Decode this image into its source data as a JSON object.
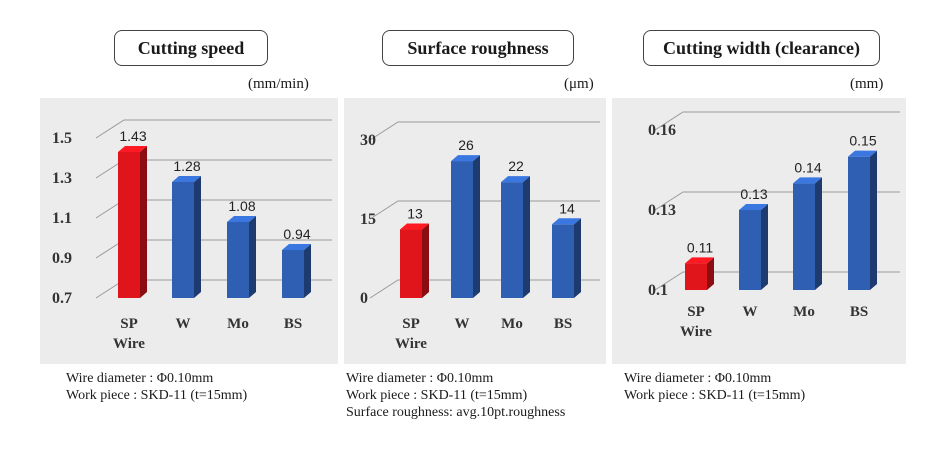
{
  "chart_data": [
    {
      "type": "bar",
      "title": "Cutting speed",
      "unit": "(mm/min)",
      "categories": [
        "SP\nWire",
        "W",
        "Mo",
        "BS"
      ],
      "values": [
        1.43,
        1.28,
        1.08,
        0.94
      ],
      "value_labels": [
        "1.43",
        "1.28",
        "1.08",
        "0.94"
      ],
      "yticks": [
        "1.5",
        "1.3",
        "1.1",
        "0.9",
        "0.7"
      ],
      "ylim": [
        0.7,
        1.5
      ],
      "highlight_index": 0,
      "notes": [
        "Wire diameter : Φ0.10mm",
        "Work piece : SKD-11 (t=15mm)"
      ]
    },
    {
      "type": "bar",
      "title": "Surface roughness",
      "unit": "(μm)",
      "categories": [
        "SP\nWire",
        "W",
        "Mo",
        "BS"
      ],
      "values": [
        13,
        26,
        22,
        14
      ],
      "value_labels": [
        "13",
        "26",
        "22",
        "14"
      ],
      "yticks": [
        "30",
        "15",
        "0"
      ],
      "ylim": [
        0,
        30
      ],
      "highlight_index": 0,
      "notes": [
        "Wire diameter : Φ0.10mm",
        "Work piece : SKD-11 (t=15mm)",
        "Surface roughness: avg.10pt.roughness"
      ]
    },
    {
      "type": "bar",
      "title": "Cutting width (clearance)",
      "unit": "(mm)",
      "categories": [
        "SP\nWire",
        "W",
        "Mo",
        "BS"
      ],
      "values": [
        0.11,
        0.13,
        0.14,
        0.15
      ],
      "value_labels": [
        "0.11",
        "0.13",
        "0.14",
        "0.15"
      ],
      "yticks": [
        "0.16",
        "0.13",
        "0.1"
      ],
      "ylim": [
        0.1,
        0.16
      ],
      "highlight_index": 0,
      "notes": [
        "Wire diameter : Φ0.10mm",
        "Work piece : SKD-11 (t=15mm)"
      ]
    }
  ],
  "colors": {
    "highlight": "#e0141b",
    "bar": "#2f5fb3",
    "grid": "#9a9a9a",
    "plot_bg": "#ececec"
  }
}
